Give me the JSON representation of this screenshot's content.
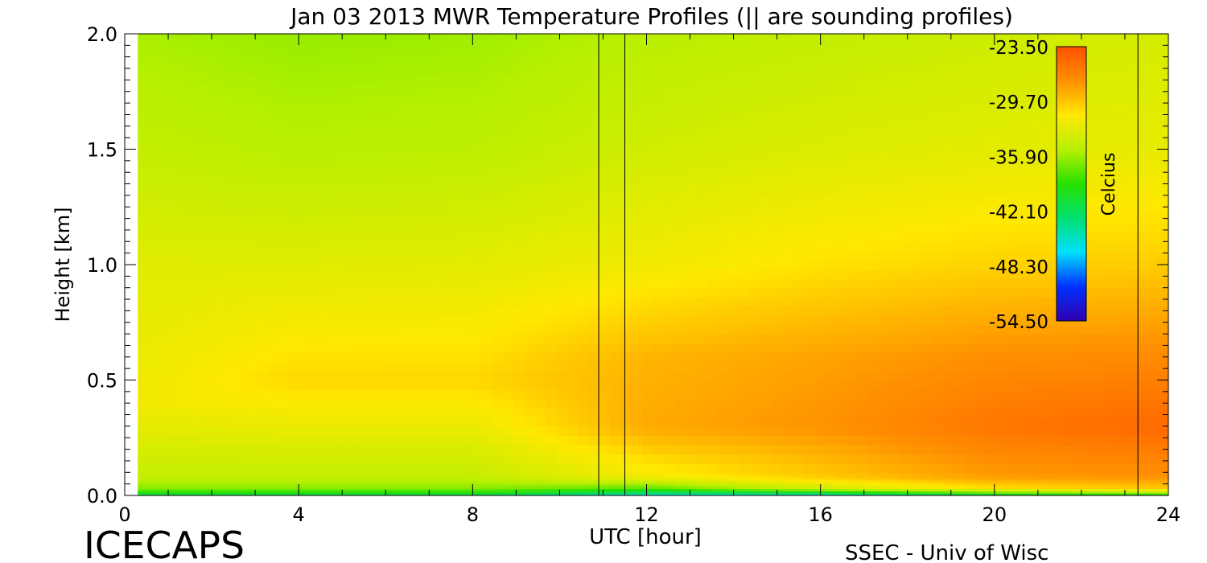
{
  "chart_data": {
    "type": "heatmap",
    "title": "Jan 03 2013 MWR Temperature Profiles (|| are sounding profiles)",
    "xlabel": "UTC [hour]",
    "ylabel": "Height [km]",
    "xlim": [
      0,
      24
    ],
    "ylim": [
      0,
      2.0
    ],
    "x_ticks": [
      "0",
      "4",
      "8",
      "12",
      "16",
      "20",
      "24"
    ],
    "y_ticks": [
      "0.0",
      "0.5",
      "1.0",
      "1.5",
      "2.0"
    ],
    "data_start_hour": 0.3,
    "sounding_times": [
      10.9,
      11.5,
      23.3
    ],
    "colorbar": {
      "label": "Celcius",
      "ticks": [
        "-23.50",
        "-29.70",
        "-35.90",
        "-42.10",
        "-48.30",
        "-54.50"
      ],
      "range": [
        -54.5,
        -23.5
      ],
      "colormap": [
        "#3000b0",
        "#0030ff",
        "#00e0ff",
        "#00e070",
        "#28e000",
        "#b8f000",
        "#ffe800",
        "#ff9000",
        "#ff5000"
      ]
    },
    "series": [
      {
        "x": 0.3,
        "profile": [
          [
            0,
            -42.0
          ],
          [
            0.03,
            -36.5
          ],
          [
            0.08,
            -34.5
          ],
          [
            0.4,
            -32.0
          ],
          [
            1.0,
            -33.0
          ],
          [
            1.5,
            -34.5
          ],
          [
            2.0,
            -35.5
          ]
        ]
      },
      {
        "x": 4,
        "profile": [
          [
            0,
            -42.0
          ],
          [
            0.03,
            -36.5
          ],
          [
            0.08,
            -34.5
          ],
          [
            0.5,
            -30.5
          ],
          [
            1.0,
            -33.0
          ],
          [
            1.5,
            -35.0
          ],
          [
            2.0,
            -36.0
          ]
        ]
      },
      {
        "x": 8,
        "profile": [
          [
            0,
            -42.0
          ],
          [
            0.03,
            -36.5
          ],
          [
            0.08,
            -34.5
          ],
          [
            0.5,
            -30.5
          ],
          [
            1.0,
            -32.8
          ],
          [
            1.5,
            -34.8
          ],
          [
            2.0,
            -35.8
          ]
        ]
      },
      {
        "x": 12,
        "profile": [
          [
            0,
            -46.0
          ],
          [
            0.03,
            -38.0
          ],
          [
            0.08,
            -32.0
          ],
          [
            0.3,
            -28.5
          ],
          [
            0.6,
            -29.0
          ],
          [
            1.0,
            -32.0
          ],
          [
            1.5,
            -33.8
          ],
          [
            2.0,
            -35.0
          ]
        ]
      },
      {
        "x": 16,
        "profile": [
          [
            0,
            -46.0
          ],
          [
            0.03,
            -34.0
          ],
          [
            0.08,
            -30.0
          ],
          [
            0.3,
            -27.5
          ],
          [
            0.6,
            -28.2
          ],
          [
            1.0,
            -31.0
          ],
          [
            1.5,
            -33.2
          ],
          [
            2.0,
            -34.5
          ]
        ]
      },
      {
        "x": 20,
        "profile": [
          [
            0,
            -42.0
          ],
          [
            0.03,
            -31.0
          ],
          [
            0.08,
            -28.0
          ],
          [
            0.3,
            -25.8
          ],
          [
            0.6,
            -27.3
          ],
          [
            1.0,
            -30.3
          ],
          [
            1.5,
            -32.8
          ],
          [
            2.0,
            -34.0
          ]
        ]
      },
      {
        "x": 24,
        "profile": [
          [
            0,
            -40.0
          ],
          [
            0.03,
            -30.0
          ],
          [
            0.08,
            -27.5
          ],
          [
            0.3,
            -25.0
          ],
          [
            0.6,
            -27.0
          ],
          [
            1.0,
            -30.0
          ],
          [
            1.5,
            -32.5
          ],
          [
            2.0,
            -33.5
          ]
        ]
      }
    ]
  },
  "footer": {
    "left": "ICECAPS",
    "right": "SSEC - Univ of Wisc"
  }
}
